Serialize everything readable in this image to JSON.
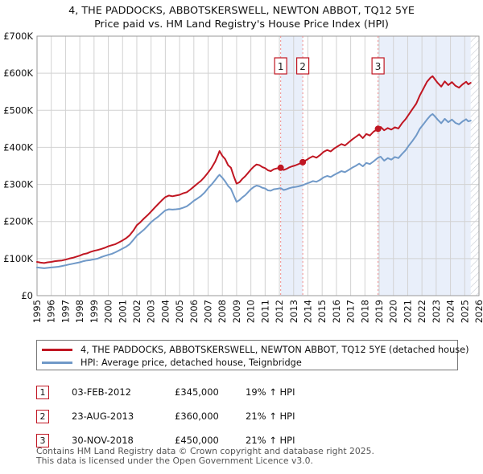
{
  "title": {
    "line1": "4, THE PADDOCKS, ABBOTSKERSWELL, NEWTON ABBOT, TQ12 5YE",
    "line2": "Price paid vs. HM Land Registry's House Price Index (HPI)"
  },
  "colors": {
    "property_line": "#c01622",
    "hpi_line": "#7099c8",
    "sale_dashed": "#f08b8b",
    "band": "#e9effa",
    "grid": "#d2d2d2",
    "frame": "#9a9a9a",
    "hatch": "#b9bfc9",
    "marker_border": "#c01622",
    "text": "#111111",
    "footer_text": "#555555"
  },
  "chart_data": {
    "type": "line",
    "title": "4, THE PADDOCKS, ABBOTSKERSWELL, NEWTON ABBOT, TQ12 5YE — Price paid vs. HM Land Registry's House Price Index (HPI)",
    "x_axis": {
      "min": 1995,
      "max": 2026,
      "tick_labels": [
        "1995",
        "1996",
        "1997",
        "1998",
        "1999",
        "2000",
        "2001",
        "2002",
        "2003",
        "2004",
        "2005",
        "2006",
        "2007",
        "2008",
        "2009",
        "2010",
        "2011",
        "2012",
        "2013",
        "2014",
        "2015",
        "2016",
        "2017",
        "2018",
        "2019",
        "2020",
        "2021",
        "2022",
        "2023",
        "2024",
        "2025",
        "2026"
      ]
    },
    "y_axis": {
      "min_k": 0,
      "max_k": 700,
      "step_k": 100,
      "tick_labels": [
        "£0",
        "£100K",
        "£200K",
        "£300K",
        "£400K",
        "£500K",
        "£600K",
        "£700K"
      ],
      "unit_note": "values in £1000"
    },
    "grid": true,
    "legend_position": "bottom",
    "series": [
      {
        "name": "4, THE PADDOCKS, ABBOTSKERSWELL, NEWTON ABBOT, TQ12 5YE (detached house)",
        "color": "#c01622",
        "data_name": "property-price-line",
        "points": [
          [
            1995.0,
            91
          ],
          [
            1995.25,
            89
          ],
          [
            1995.5,
            88
          ],
          [
            1995.75,
            90
          ],
          [
            1996.0,
            91
          ],
          [
            1996.25,
            93
          ],
          [
            1996.5,
            94
          ],
          [
            1996.75,
            95
          ],
          [
            1997.0,
            97
          ],
          [
            1997.25,
            100
          ],
          [
            1997.5,
            102
          ],
          [
            1997.75,
            105
          ],
          [
            1998.0,
            108
          ],
          [
            1998.25,
            112
          ],
          [
            1998.5,
            114
          ],
          [
            1998.75,
            118
          ],
          [
            1999.0,
            121
          ],
          [
            1999.25,
            123
          ],
          [
            1999.5,
            126
          ],
          [
            1999.75,
            129
          ],
          [
            2000.0,
            133
          ],
          [
            2000.25,
            136
          ],
          [
            2000.5,
            139
          ],
          [
            2000.75,
            144
          ],
          [
            2001.0,
            149
          ],
          [
            2001.25,
            155
          ],
          [
            2001.5,
            163
          ],
          [
            2001.75,
            175
          ],
          [
            2002.0,
            190
          ],
          [
            2002.25,
            198
          ],
          [
            2002.5,
            208
          ],
          [
            2002.75,
            217
          ],
          [
            2003.0,
            227
          ],
          [
            2003.25,
            237
          ],
          [
            2003.5,
            247
          ],
          [
            2003.75,
            257
          ],
          [
            2004.0,
            266
          ],
          [
            2004.25,
            270
          ],
          [
            2004.5,
            268
          ],
          [
            2004.75,
            270
          ],
          [
            2005.0,
            272
          ],
          [
            2005.25,
            276
          ],
          [
            2005.5,
            279
          ],
          [
            2005.75,
            286
          ],
          [
            2006.0,
            294
          ],
          [
            2006.25,
            302
          ],
          [
            2006.5,
            310
          ],
          [
            2006.75,
            320
          ],
          [
            2007.0,
            332
          ],
          [
            2007.25,
            345
          ],
          [
            2007.5,
            362
          ],
          [
            2007.7,
            380
          ],
          [
            2007.8,
            390
          ],
          [
            2008.0,
            377
          ],
          [
            2008.2,
            368
          ],
          [
            2008.4,
            352
          ],
          [
            2008.6,
            345
          ],
          [
            2008.8,
            322
          ],
          [
            2009.0,
            302
          ],
          [
            2009.2,
            306
          ],
          [
            2009.4,
            315
          ],
          [
            2009.6,
            322
          ],
          [
            2009.8,
            331
          ],
          [
            2010.0,
            340
          ],
          [
            2010.2,
            348
          ],
          [
            2010.4,
            354
          ],
          [
            2010.6,
            352
          ],
          [
            2010.8,
            347
          ],
          [
            2011.0,
            344
          ],
          [
            2011.2,
            338
          ],
          [
            2011.4,
            336
          ],
          [
            2011.6,
            341
          ],
          [
            2011.8,
            343
          ],
          [
            2012.09,
            345
          ],
          [
            2012.3,
            339
          ],
          [
            2012.5,
            342
          ],
          [
            2012.7,
            346
          ],
          [
            2012.9,
            349
          ],
          [
            2013.1,
            351
          ],
          [
            2013.35,
            355
          ],
          [
            2013.64,
            360
          ],
          [
            2013.9,
            366
          ],
          [
            2014.1,
            371
          ],
          [
            2014.35,
            376
          ],
          [
            2014.6,
            372
          ],
          [
            2014.85,
            379
          ],
          [
            2015.1,
            388
          ],
          [
            2015.35,
            393
          ],
          [
            2015.6,
            389
          ],
          [
            2015.85,
            397
          ],
          [
            2016.1,
            403
          ],
          [
            2016.35,
            409
          ],
          [
            2016.6,
            405
          ],
          [
            2016.85,
            413
          ],
          [
            2017.1,
            421
          ],
          [
            2017.35,
            428
          ],
          [
            2017.6,
            435
          ],
          [
            2017.85,
            425
          ],
          [
            2018.1,
            436
          ],
          [
            2018.35,
            432
          ],
          [
            2018.6,
            442
          ],
          [
            2018.92,
            450
          ],
          [
            2019.1,
            455
          ],
          [
            2019.35,
            446
          ],
          [
            2019.6,
            452
          ],
          [
            2019.85,
            448
          ],
          [
            2020.1,
            454
          ],
          [
            2020.35,
            451
          ],
          [
            2020.6,
            465
          ],
          [
            2020.85,
            476
          ],
          [
            2021.1,
            490
          ],
          [
            2021.35,
            504
          ],
          [
            2021.6,
            518
          ],
          [
            2021.85,
            540
          ],
          [
            2022.1,
            558
          ],
          [
            2022.35,
            577
          ],
          [
            2022.6,
            588
          ],
          [
            2022.75,
            592
          ],
          [
            2022.9,
            584
          ],
          [
            2023.1,
            574
          ],
          [
            2023.35,
            564
          ],
          [
            2023.6,
            578
          ],
          [
            2023.85,
            568
          ],
          [
            2024.1,
            576
          ],
          [
            2024.35,
            566
          ],
          [
            2024.6,
            561
          ],
          [
            2024.85,
            570
          ],
          [
            2025.1,
            577
          ],
          [
            2025.25,
            570
          ],
          [
            2025.42,
            574
          ]
        ]
      },
      {
        "name": "HPI: Average price, detached house, Teignbridge",
        "color": "#7099c8",
        "data_name": "hpi-average-line",
        "points": [
          [
            1995.0,
            76
          ],
          [
            1995.25,
            75
          ],
          [
            1995.5,
            74
          ],
          [
            1995.75,
            75
          ],
          [
            1996.0,
            76
          ],
          [
            1996.25,
            77
          ],
          [
            1996.5,
            78
          ],
          [
            1996.75,
            80
          ],
          [
            1997.0,
            82
          ],
          [
            1997.25,
            84
          ],
          [
            1997.5,
            86
          ],
          [
            1997.75,
            88
          ],
          [
            1998.0,
            90
          ],
          [
            1998.25,
            93
          ],
          [
            1998.5,
            95
          ],
          [
            1998.75,
            96
          ],
          [
            1999.0,
            98
          ],
          [
            1999.25,
            100
          ],
          [
            1999.5,
            104
          ],
          [
            1999.75,
            107
          ],
          [
            2000.0,
            110
          ],
          [
            2000.25,
            113
          ],
          [
            2000.5,
            117
          ],
          [
            2000.75,
            122
          ],
          [
            2001.0,
            127
          ],
          [
            2001.25,
            132
          ],
          [
            2001.5,
            139
          ],
          [
            2001.75,
            150
          ],
          [
            2002.0,
            162
          ],
          [
            2002.25,
            170
          ],
          [
            2002.5,
            178
          ],
          [
            2002.75,
            188
          ],
          [
            2003.0,
            198
          ],
          [
            2003.25,
            206
          ],
          [
            2003.5,
            213
          ],
          [
            2003.75,
            222
          ],
          [
            2004.0,
            230
          ],
          [
            2004.25,
            233
          ],
          [
            2004.5,
            232
          ],
          [
            2004.75,
            233
          ],
          [
            2005.0,
            234
          ],
          [
            2005.25,
            237
          ],
          [
            2005.5,
            241
          ],
          [
            2005.75,
            248
          ],
          [
            2006.0,
            256
          ],
          [
            2006.25,
            262
          ],
          [
            2006.5,
            269
          ],
          [
            2006.75,
            278
          ],
          [
            2007.0,
            290
          ],
          [
            2007.25,
            300
          ],
          [
            2007.5,
            312
          ],
          [
            2007.7,
            322
          ],
          [
            2007.8,
            326
          ],
          [
            2008.0,
            318
          ],
          [
            2008.2,
            308
          ],
          [
            2008.4,
            296
          ],
          [
            2008.6,
            288
          ],
          [
            2008.8,
            270
          ],
          [
            2009.0,
            253
          ],
          [
            2009.2,
            258
          ],
          [
            2009.4,
            265
          ],
          [
            2009.6,
            271
          ],
          [
            2009.8,
            279
          ],
          [
            2010.0,
            287
          ],
          [
            2010.2,
            293
          ],
          [
            2010.4,
            297
          ],
          [
            2010.6,
            295
          ],
          [
            2010.8,
            291
          ],
          [
            2011.0,
            289
          ],
          [
            2011.2,
            284
          ],
          [
            2011.4,
            283
          ],
          [
            2011.6,
            287
          ],
          [
            2011.8,
            288
          ],
          [
            2012.09,
            290
          ],
          [
            2012.3,
            285
          ],
          [
            2012.5,
            287
          ],
          [
            2012.7,
            290
          ],
          [
            2012.9,
            292
          ],
          [
            2013.1,
            293
          ],
          [
            2013.35,
            295
          ],
          [
            2013.64,
            298
          ],
          [
            2013.9,
            302
          ],
          [
            2014.1,
            305
          ],
          [
            2014.35,
            309
          ],
          [
            2014.6,
            307
          ],
          [
            2014.85,
            312
          ],
          [
            2015.1,
            319
          ],
          [
            2015.35,
            323
          ],
          [
            2015.6,
            320
          ],
          [
            2015.85,
            326
          ],
          [
            2016.1,
            331
          ],
          [
            2016.35,
            336
          ],
          [
            2016.6,
            333
          ],
          [
            2016.85,
            339
          ],
          [
            2017.1,
            345
          ],
          [
            2017.35,
            350
          ],
          [
            2017.6,
            356
          ],
          [
            2017.85,
            349
          ],
          [
            2018.1,
            358
          ],
          [
            2018.35,
            355
          ],
          [
            2018.6,
            362
          ],
          [
            2018.92,
            372
          ],
          [
            2019.1,
            375
          ],
          [
            2019.35,
            364
          ],
          [
            2019.6,
            371
          ],
          [
            2019.85,
            367
          ],
          [
            2020.1,
            374
          ],
          [
            2020.35,
            371
          ],
          [
            2020.6,
            382
          ],
          [
            2020.85,
            392
          ],
          [
            2021.1,
            406
          ],
          [
            2021.35,
            418
          ],
          [
            2021.6,
            432
          ],
          [
            2021.85,
            450
          ],
          [
            2022.1,
            462
          ],
          [
            2022.35,
            475
          ],
          [
            2022.6,
            486
          ],
          [
            2022.75,
            490
          ],
          [
            2022.9,
            484
          ],
          [
            2023.1,
            475
          ],
          [
            2023.35,
            465
          ],
          [
            2023.6,
            477
          ],
          [
            2023.85,
            468
          ],
          [
            2024.1,
            475
          ],
          [
            2024.35,
            466
          ],
          [
            2024.6,
            462
          ],
          [
            2024.85,
            470
          ],
          [
            2025.1,
            476
          ],
          [
            2025.25,
            470
          ],
          [
            2025.42,
            472
          ]
        ]
      }
    ],
    "sales_markers": [
      {
        "label": "1",
        "year": 2012.09,
        "value_k": 345
      },
      {
        "label": "2",
        "year": 2013.64,
        "value_k": 360
      },
      {
        "label": "3",
        "year": 2018.92,
        "value_k": 450
      }
    ],
    "ownership_bands": [
      {
        "from": 2012.09,
        "to": 2013.64
      },
      {
        "from": 2018.92,
        "to": 2025.42
      }
    ],
    "future_hatch_from": 2025.42
  },
  "legend": {
    "entries": [
      {
        "label": "4, THE PADDOCKS, ABBOTSKERSWELL, NEWTON ABBOT, TQ12 5YE (detached house)",
        "color": "#c01622"
      },
      {
        "label": "HPI: Average price, detached house, Teignbridge",
        "color": "#7099c8"
      }
    ]
  },
  "sales": [
    {
      "num": "1",
      "date": "03-FEB-2012",
      "price": "£345,000",
      "hpi": "19% ↑ HPI"
    },
    {
      "num": "2",
      "date": "23-AUG-2013",
      "price": "£360,000",
      "hpi": "21% ↑ HPI"
    },
    {
      "num": "3",
      "date": "30-NOV-2018",
      "price": "£450,000",
      "hpi": "21% ↑ HPI"
    }
  ],
  "footer": {
    "line1": "Contains HM Land Registry data © Crown copyright and database right 2025.",
    "line2": "This data is licensed under the Open Government Licence v3.0."
  }
}
